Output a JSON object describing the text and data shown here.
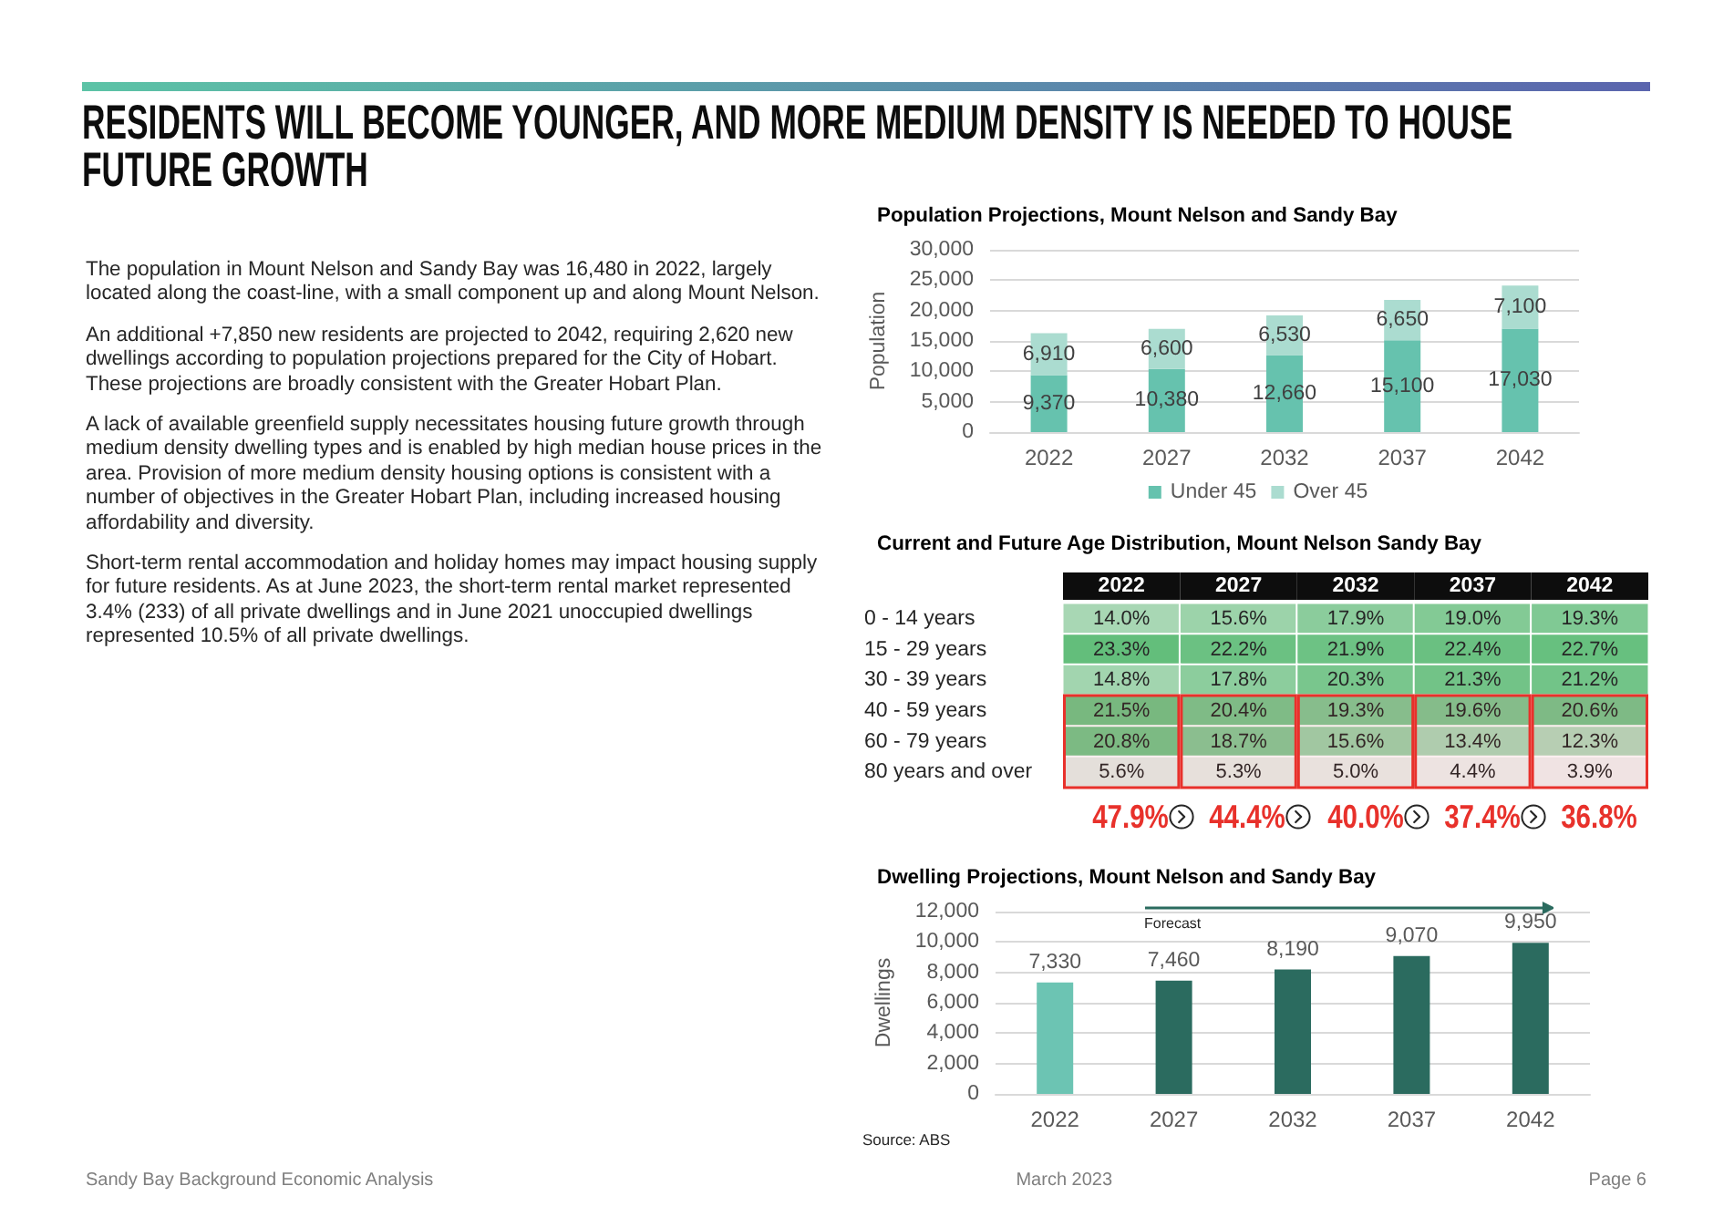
{
  "chart_data": [
    {
      "type": "other",
      "title": "RESIDENTS WILL BECOME YOUNGER, AND MORE MEDIUM DENSITY IS NEEDED TO HOUSE FUTURE GROWTH",
      "annotations": [
        "The population in Mount Nelson and Sandy Bay was 16,480 in 2022, largely located along the coast-line, with a small component up and along Mount Nelson.",
        "An additional +7,850 new residents are projected to 2042, requiring 2,620 new dwellings according to population projections prepared for the City of Hobart. These projections are broadly consistent with the Greater Hobart Plan.",
        "A lack of available greenfield supply necessitates housing future growth through medium density dwelling types and is enabled by high median house prices in the area. Provision of more medium density housing options is consistent with a number of objectives in the Greater Hobart Plan, including increased housing affordability and diversity.",
        "Short-term rental accommodation and holiday homes may impact housing supply for future residents. As at June 2023, the short-term rental market represented 3.4% (233) of all private dwellings and in June 2021 unoccupied dwellings represented 10.5% of all private dwellings."
      ]
    },
    {
      "type": "bar",
      "title": "Population Projections, Mount Nelson and Sandy Bay",
      "categories": [
        "2022",
        "2027",
        "2032",
        "2037",
        "2042"
      ],
      "series": [
        {
          "name": "Under 45",
          "color": "#66c2ae",
          "values": [
            9370,
            10380,
            12660,
            15100,
            17030
          ],
          "value_labels": [
            "9,370",
            "10,380",
            "12,660",
            "15,100",
            "17,030"
          ]
        },
        {
          "name": "Over 45",
          "color": "#abdcd0",
          "values": [
            6910,
            6600,
            6530,
            6650,
            7100
          ],
          "value_labels": [
            "6,910",
            "6,600",
            "6,530",
            "6,650",
            "7,100"
          ]
        }
      ],
      "stacked": true,
      "ylabel": "Population",
      "ylim": [
        0,
        30000
      ],
      "yticks": [
        0,
        {
          "value": 5000,
          "label": "5,000"
        },
        {
          "value": 10000,
          "label": "10,000"
        },
        {
          "value": 15000,
          "label": "15,000"
        },
        {
          "value": 20000,
          "label": "20,000"
        },
        {
          "value": 25000,
          "label": "25,000"
        },
        {
          "value": 30000,
          "label": "30,000"
        }
      ],
      "grid": "y",
      "legend": "bottom"
    },
    {
      "type": "heatmap",
      "title": "Current and Future Age Distribution, Mount Nelson Sandy Bay",
      "categories": [
        "2022",
        "2027",
        "2032",
        "2037",
        "2042"
      ],
      "y_categories": [
        "0 - 14 years",
        "15 - 29 years",
        "30 - 39 years",
        "40 - 59 years",
        "60 - 79 years",
        "80 years and over"
      ],
      "cells": [
        [
          14.0,
          15.6,
          17.9,
          19.0,
          19.3
        ],
        [
          23.3,
          22.2,
          21.9,
          22.4,
          22.7
        ],
        [
          14.8,
          17.8,
          20.3,
          21.3,
          21.2
        ],
        [
          21.5,
          20.4,
          19.3,
          19.6,
          20.6
        ],
        [
          20.8,
          18.7,
          15.6,
          13.4,
          12.3
        ],
        [
          5.6,
          5.3,
          5.0,
          4.4,
          3.9
        ]
      ],
      "cell_labels": [
        [
          "14.0%",
          "15.6%",
          "17.9%",
          "19.0%",
          "19.3%"
        ],
        [
          "23.3%",
          "22.2%",
          "21.9%",
          "22.4%",
          "22.7%"
        ],
        [
          "14.8%",
          "17.8%",
          "20.3%",
          "21.3%",
          "21.2%"
        ],
        [
          "21.5%",
          "20.4%",
          "19.3%",
          "19.6%",
          "20.6%"
        ],
        [
          "20.8%",
          "18.7%",
          "15.6%",
          "13.4%",
          "12.3%"
        ],
        [
          "5.6%",
          "5.3%",
          "5.0%",
          "4.4%",
          "3.9%"
        ]
      ],
      "colors": [
        "#f2f2f2",
        "#63be7b"
      ],
      "bands": [
        {
          "axis": "y",
          "from": "40 - 59 years",
          "to": "80 years and over",
          "color": "#e8312b"
        }
      ],
      "annotations": [
        "47.9%",
        "44.4%",
        "40.0%",
        "37.4%",
        "36.8%"
      ]
    },
    {
      "type": "bar",
      "title": "Dwelling Projections, Mount Nelson and Sandy Bay",
      "categories": [
        "2022",
        "2027",
        "2032",
        "2037",
        "2042"
      ],
      "values": [
        7330,
        7460,
        8190,
        9070,
        9950
      ],
      "value_labels": [
        "7,330",
        "7,460",
        "8,190",
        "9,070",
        "9,950"
      ],
      "colors": [
        "#6cc4b3",
        "#2b6b5f",
        "#2b6b5f",
        "#2b6b5f",
        "#2b6b5f"
      ],
      "ylabel": "Dwellings",
      "ylim": [
        0,
        12000
      ],
      "yticks": [
        0,
        {
          "value": 2000,
          "label": "2,000"
        },
        {
          "value": 4000,
          "label": "4,000"
        },
        {
          "value": 6000,
          "label": "6,000"
        },
        {
          "value": 8000,
          "label": "8,000"
        },
        {
          "value": 10000,
          "label": "10,000"
        },
        {
          "value": 12000,
          "label": "12,000"
        }
      ],
      "grid": "y",
      "annotations": [
        "Forecast",
        "Source: ABS"
      ]
    },
    {
      "type": "other",
      "annotations": [
        "Sandy Bay Background Economic Analysis",
        "March 2023",
        "Page 6"
      ]
    }
  ]
}
